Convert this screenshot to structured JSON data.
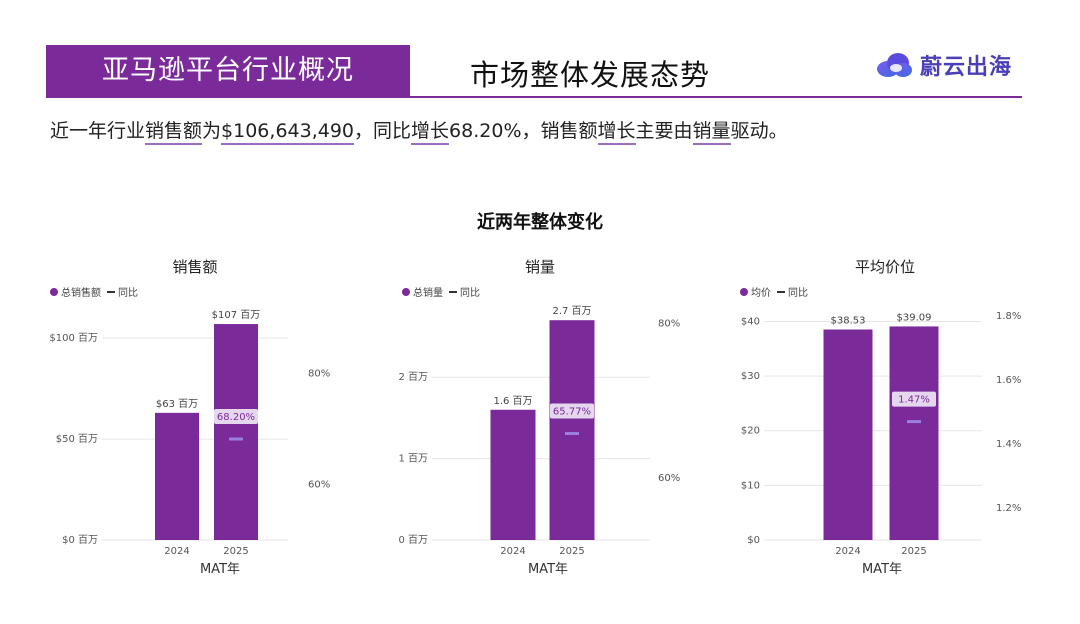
{
  "header": {
    "section_label": "亚马逊平台行业概况",
    "title": "市场整体发展态势",
    "logo_text": "蔚云出海"
  },
  "summary": {
    "prefix": "近一年行业",
    "sales_word": "销售额",
    "mid1": "为",
    "sales_value": "$106,643,490",
    "mid2": "，同比",
    "growth_word": "增长",
    "growth_value": "68.20%",
    "mid3": "，销售额",
    "growth_word2": "增长",
    "mid4": "主要由",
    "volume_word": "销量",
    "suffix": "驱动。"
  },
  "section_title": "近两年整体变化",
  "colors": {
    "accent": "#7b2a9a",
    "yoy_marker": "#9b7fe0",
    "grid": "#e6e6e6"
  },
  "chart_data": [
    {
      "type": "bar",
      "title": "销售额",
      "legend": [
        "总销售额",
        "同比"
      ],
      "xlabel": "MAT年",
      "categories": [
        "2024",
        "2025"
      ],
      "series": [
        {
          "name": "总销售额",
          "values": [
            63,
            107
          ],
          "data_labels": [
            "$63 百万",
            "$107 百万"
          ]
        },
        {
          "name": "同比",
          "values": [
            null,
            68.2
          ],
          "data_labels": [
            "",
            "68.20%"
          ]
        }
      ],
      "ylim": [
        0,
        110
      ],
      "y_ticks": [
        0,
        50,
        100
      ],
      "y_tick_labels": [
        "$0 百万",
        "$50 百万",
        "$100 百万"
      ],
      "y2lim": [
        50,
        90
      ],
      "y2_ticks": [
        60,
        80
      ],
      "y2_tick_labels": [
        "60%",
        "80%"
      ],
      "grid": true
    },
    {
      "type": "bar",
      "title": "销量",
      "legend": [
        "总销量",
        "同比"
      ],
      "xlabel": "MAT年",
      "categories": [
        "2024",
        "2025"
      ],
      "series": [
        {
          "name": "总销量",
          "values": [
            1.6,
            2.7
          ],
          "data_labels": [
            "1.6 百万",
            "2.7 百万"
          ]
        },
        {
          "name": "同比",
          "values": [
            null,
            65.77
          ],
          "data_labels": [
            "",
            "65.77%"
          ]
        }
      ],
      "ylim": [
        0,
        2.85
      ],
      "y_ticks": [
        0,
        1,
        2
      ],
      "y_tick_labels": [
        "0 百万",
        "1 百万",
        "2 百万"
      ],
      "y2lim": [
        52,
        82
      ],
      "y2_ticks": [
        60,
        80
      ],
      "y2_tick_labels": [
        "60%",
        "80%"
      ],
      "grid": true
    },
    {
      "type": "bar",
      "title": "平均价位",
      "legend": [
        "均价",
        "同比"
      ],
      "xlabel": "MAT年",
      "categories": [
        "2024",
        "2025"
      ],
      "series": [
        {
          "name": "均价",
          "values": [
            38.53,
            39.09
          ],
          "data_labels": [
            "$38.53",
            "$39.09"
          ]
        },
        {
          "name": "同比",
          "values": [
            null,
            1.47
          ],
          "data_labels": [
            "",
            "1.47%"
          ]
        }
      ],
      "ylim": [
        0,
        41
      ],
      "y_ticks": [
        0,
        10,
        20,
        30,
        40
      ],
      "y_tick_labels": [
        "$0",
        "$10",
        "$20",
        "$30",
        "$40"
      ],
      "y2lim": [
        1.1,
        1.8
      ],
      "y2_ticks": [
        1.2,
        1.4,
        1.6,
        1.8
      ],
      "y2_tick_labels": [
        "1.2%",
        "1.4%",
        "1.6%",
        "1.8%"
      ],
      "grid": true
    }
  ]
}
